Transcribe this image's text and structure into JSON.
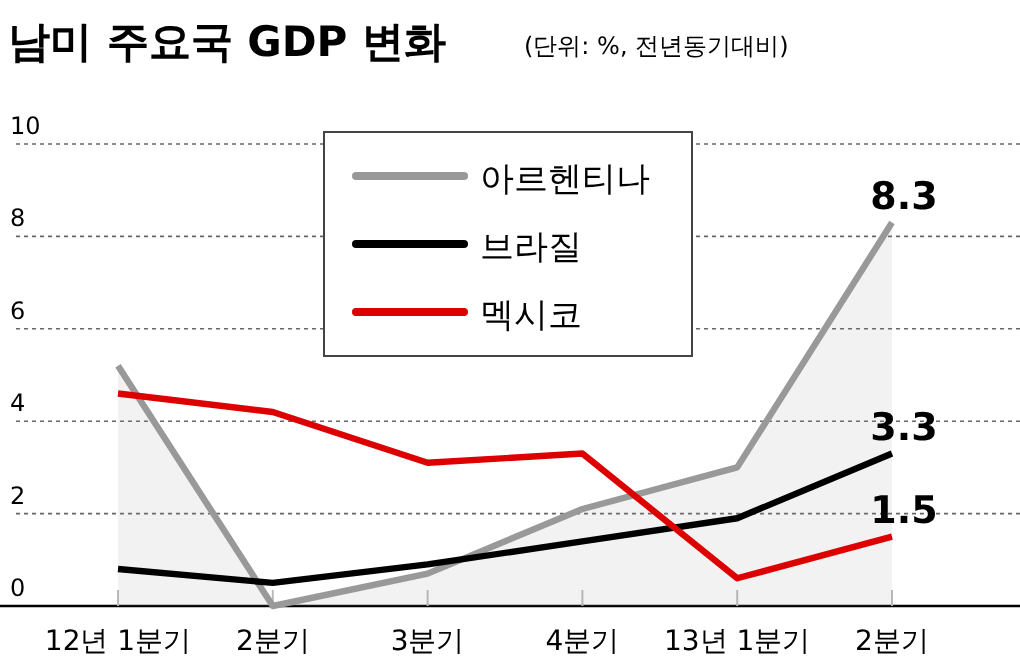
{
  "chart_data": {
    "type": "line",
    "title": "남미 주요국 GDP 변화",
    "subtitle": "(단위: %, 전년동기대비)",
    "categories": [
      "12년 1분기",
      "2분기",
      "3분기",
      "4분기",
      "13년 1분기",
      "2분기"
    ],
    "series": [
      {
        "name": "아르헨티나",
        "type": "area",
        "color": "#999999",
        "values": [
          5.2,
          0,
          0.7,
          2.1,
          3.0,
          8.3
        ],
        "value_labels": [
          null,
          null,
          null,
          null,
          null,
          "8.3"
        ]
      },
      {
        "name": "브라질",
        "color": "#000000",
        "values": [
          0.8,
          0.5,
          0.9,
          1.4,
          1.9,
          3.3
        ],
        "value_labels": [
          null,
          null,
          null,
          null,
          null,
          "3.3"
        ]
      },
      {
        "name": "멕시코",
        "color": "#dd0000",
        "values": [
          4.6,
          4.2,
          3.1,
          3.3,
          0.6,
          1.5
        ],
        "value_labels": [
          null,
          null,
          null,
          null,
          null,
          "1.5"
        ]
      }
    ],
    "ylim": [
      0,
      10
    ],
    "yticks": [
      0,
      2,
      4,
      6,
      8,
      10
    ],
    "grid": "y",
    "legend": "top"
  }
}
